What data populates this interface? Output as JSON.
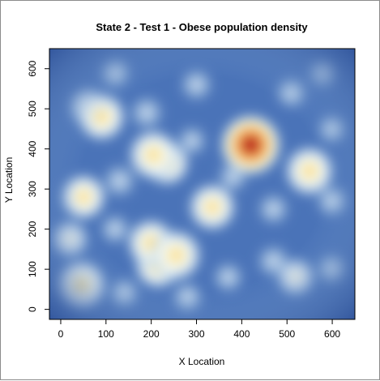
{
  "chart_data": {
    "type": "heatmap",
    "title": "State 2 - Test 1 - Obese population density",
    "xlabel": "X Location",
    "ylabel": "Y Location",
    "xlim": [
      -25,
      650
    ],
    "ylim": [
      -25,
      650
    ],
    "xticks": [
      0,
      100,
      200,
      300,
      400,
      500,
      600
    ],
    "yticks": [
      0,
      100,
      200,
      300,
      400,
      500,
      600
    ],
    "colorscale": [
      "#2a4d95",
      "#4a73b8",
      "#86aad6",
      "#c4dcee",
      "#eef6fb",
      "#fbf4c8",
      "#f7cc70",
      "#e8843f",
      "#c02a20",
      "#9b0f16"
    ],
    "hotspots": [
      {
        "x": 420,
        "y": 410,
        "intensity": 1.0
      },
      {
        "x": 415,
        "y": 395,
        "intensity": 0.55
      },
      {
        "x": 550,
        "y": 345,
        "intensity": 0.72
      },
      {
        "x": 205,
        "y": 385,
        "intensity": 0.72
      },
      {
        "x": 235,
        "y": 365,
        "intensity": 0.6
      },
      {
        "x": 90,
        "y": 480,
        "intensity": 0.68
      },
      {
        "x": 60,
        "y": 505,
        "intensity": 0.45
      },
      {
        "x": 50,
        "y": 280,
        "intensity": 0.62
      },
      {
        "x": 335,
        "y": 255,
        "intensity": 0.66
      },
      {
        "x": 200,
        "y": 165,
        "intensity": 0.68
      },
      {
        "x": 255,
        "y": 135,
        "intensity": 0.75
      },
      {
        "x": 215,
        "y": 110,
        "intensity": 0.65
      },
      {
        "x": 45,
        "y": 60,
        "intensity": 0.72
      },
      {
        "x": 20,
        "y": 175,
        "intensity": 0.42
      },
      {
        "x": 190,
        "y": 490,
        "intensity": 0.38
      },
      {
        "x": 300,
        "y": 560,
        "intensity": 0.35
      },
      {
        "x": 510,
        "y": 540,
        "intensity": 0.33
      },
      {
        "x": 580,
        "y": 590,
        "intensity": 0.3
      },
      {
        "x": 120,
        "y": 590,
        "intensity": 0.32
      },
      {
        "x": 470,
        "y": 250,
        "intensity": 0.33
      },
      {
        "x": 600,
        "y": 270,
        "intensity": 0.35
      },
      {
        "x": 520,
        "y": 80,
        "intensity": 0.45
      },
      {
        "x": 470,
        "y": 120,
        "intensity": 0.36
      },
      {
        "x": 370,
        "y": 80,
        "intensity": 0.3
      },
      {
        "x": 130,
        "y": 320,
        "intensity": 0.38
      },
      {
        "x": 600,
        "y": 100,
        "intensity": 0.32
      },
      {
        "x": 140,
        "y": 40,
        "intensity": 0.3
      },
      {
        "x": 290,
        "y": 420,
        "intensity": 0.28
      },
      {
        "x": 380,
        "y": 330,
        "intensity": 0.3
      },
      {
        "x": 120,
        "y": 200,
        "intensity": 0.3
      },
      {
        "x": 600,
        "y": 450,
        "intensity": 0.28
      },
      {
        "x": 280,
        "y": 30,
        "intensity": 0.32
      }
    ]
  }
}
